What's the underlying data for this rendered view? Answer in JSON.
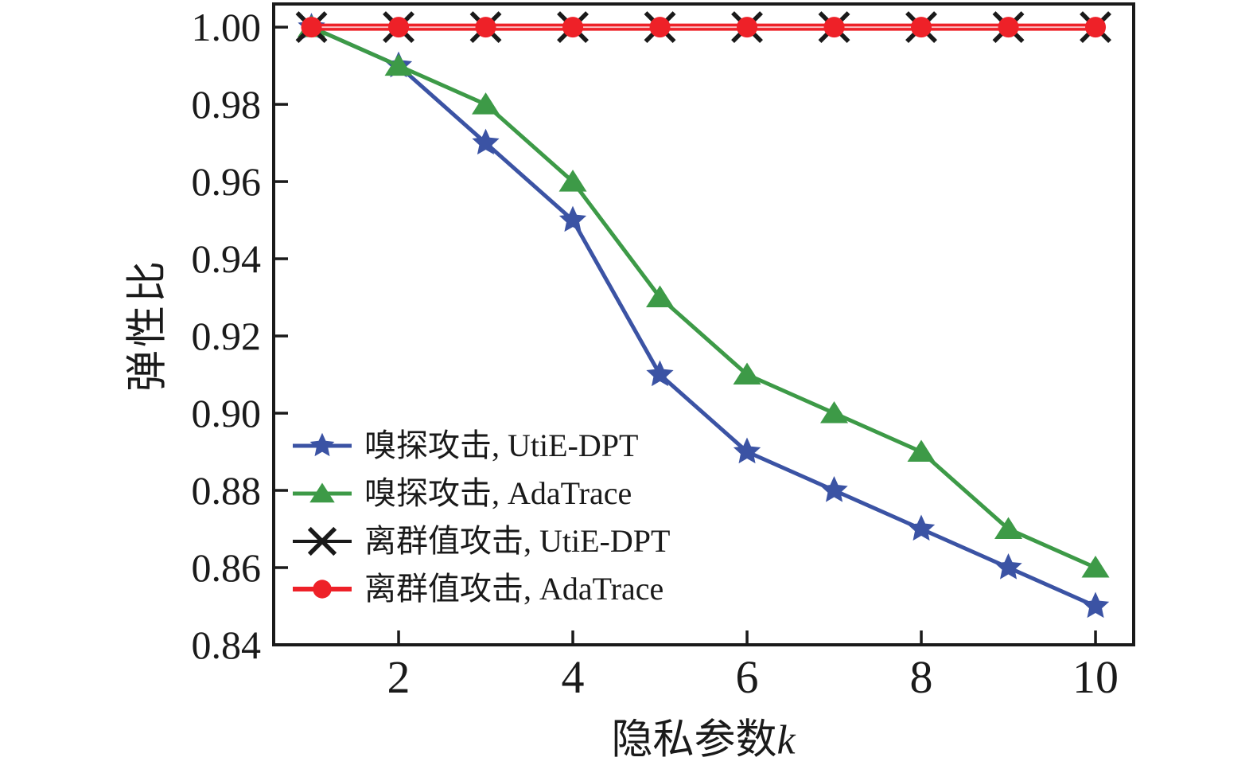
{
  "figure": {
    "background": "#ffffff",
    "axis_color": "#1a1a1a",
    "text_color": "#1a1a1a",
    "line_overlap_highlight": "rgba(255,255,255,0.7)"
  },
  "chart_data": {
    "type": "line",
    "title": "",
    "xlabel": "隐私参数k",
    "xlabel_text": "隐私参数",
    "xlabel_var": "k",
    "ylabel": "弹性比",
    "x": [
      1,
      2,
      3,
      4,
      5,
      6,
      7,
      8,
      9,
      10
    ],
    "xticks": [
      2,
      4,
      6,
      8,
      10
    ],
    "yticks": [
      0.84,
      0.86,
      0.88,
      0.9,
      0.92,
      0.94,
      0.96,
      0.98,
      1.0
    ],
    "xlim": [
      0.566,
      10.438
    ],
    "ylim": [
      0.84,
      1.006
    ],
    "grid": false,
    "legend_position": "lower left",
    "series": [
      {
        "name": "嗅探攻击, UtiE-DPT",
        "marker": "star",
        "color": "#3b53a4",
        "values": [
          1.0,
          0.99,
          0.97,
          0.95,
          0.91,
          0.89,
          0.88,
          0.87,
          0.86,
          0.85
        ]
      },
      {
        "name": "嗅探攻击, AdaTrace",
        "marker": "triangle",
        "color": "#3d9a47",
        "values": [
          1.0,
          0.99,
          0.98,
          0.96,
          0.93,
          0.91,
          0.9,
          0.89,
          0.87,
          0.86
        ]
      },
      {
        "name": "离群值攻击, UtiE-DPT",
        "marker": "x",
        "color": "#1a1a1a",
        "values": [
          1.0,
          1.0,
          1.0,
          1.0,
          1.0,
          1.0,
          1.0,
          1.0,
          1.0,
          1.0
        ]
      },
      {
        "name": "离群值攻击, AdaTrace",
        "marker": "circle",
        "color": "#ee2128",
        "values": [
          1.0,
          1.0,
          1.0,
          1.0,
          1.0,
          1.0,
          1.0,
          1.0,
          1.0,
          1.0
        ]
      }
    ]
  }
}
